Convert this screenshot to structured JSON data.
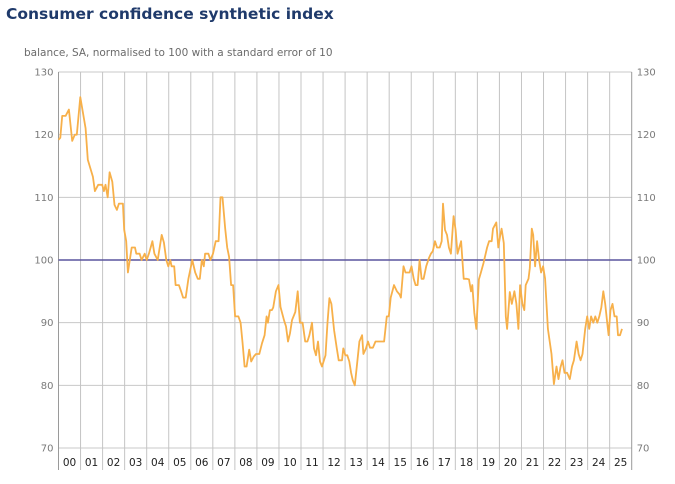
{
  "chart_data": {
    "type": "line",
    "title": "Consumer confidence synthetic index",
    "subtitle": "balance, SA, normalised to 100 with a standard error of 10",
    "xlabel": "",
    "ylabel": "",
    "xlim": [
      2000,
      2026
    ],
    "ylim": [
      70,
      130
    ],
    "yticks": [
      70,
      80,
      90,
      100,
      110,
      120,
      130
    ],
    "xtick_labels": [
      "00",
      "01",
      "02",
      "03",
      "04",
      "05",
      "06",
      "07",
      "08",
      "09",
      "10",
      "11",
      "12",
      "13",
      "14",
      "15",
      "16",
      "17",
      "18",
      "19",
      "20",
      "21",
      "22",
      "23",
      "24",
      "25"
    ],
    "grid": true,
    "reference_line": {
      "value": 100,
      "color": "#5a559e"
    },
    "series_color": "#f7b04a",
    "series": [
      {
        "points": [
          [
            2000.0,
            119.2
          ],
          [
            2000.08,
            119.5
          ],
          [
            2000.17,
            123
          ],
          [
            2000.32,
            123
          ],
          [
            2000.47,
            124
          ],
          [
            2000.62,
            119
          ],
          [
            2000.74,
            120
          ],
          [
            2000.83,
            120
          ],
          [
            2000.99,
            126
          ],
          [
            2001.23,
            121
          ],
          [
            2001.33,
            116
          ],
          [
            2001.56,
            113.3
          ],
          [
            2001.65,
            111
          ],
          [
            2001.8,
            112
          ],
          [
            2001.98,
            112
          ],
          [
            2002.06,
            111
          ],
          [
            2002.13,
            112
          ],
          [
            2002.23,
            110
          ],
          [
            2002.32,
            114
          ],
          [
            2002.44,
            112.5
          ],
          [
            2002.54,
            108.8
          ],
          [
            2002.65,
            108
          ],
          [
            2002.74,
            109
          ],
          [
            2002.92,
            109
          ],
          [
            2002.98,
            104.8
          ],
          [
            2003.07,
            103
          ],
          [
            2003.15,
            98
          ],
          [
            2003.32,
            102
          ],
          [
            2003.47,
            102
          ],
          [
            2003.53,
            101
          ],
          [
            2003.68,
            101
          ],
          [
            2003.77,
            100
          ],
          [
            2003.91,
            101
          ],
          [
            2004.0,
            100
          ],
          [
            2004.1,
            101
          ],
          [
            2004.26,
            103
          ],
          [
            2004.35,
            101
          ],
          [
            2004.5,
            100
          ],
          [
            2004.68,
            104
          ],
          [
            2004.78,
            102.8
          ],
          [
            2004.89,
            100
          ],
          [
            2004.98,
            99
          ],
          [
            2005.07,
            100
          ],
          [
            2005.13,
            99
          ],
          [
            2005.25,
            99
          ],
          [
            2005.31,
            96
          ],
          [
            2005.46,
            96
          ],
          [
            2005.56,
            95
          ],
          [
            2005.65,
            94
          ],
          [
            2005.77,
            94
          ],
          [
            2005.89,
            97
          ],
          [
            2005.95,
            98
          ],
          [
            2006.07,
            100
          ],
          [
            2006.2,
            98
          ],
          [
            2006.32,
            97
          ],
          [
            2006.41,
            97
          ],
          [
            2006.5,
            100
          ],
          [
            2006.59,
            99
          ],
          [
            2006.65,
            101
          ],
          [
            2006.8,
            101
          ],
          [
            2006.89,
            100
          ],
          [
            2007.01,
            101
          ],
          [
            2007.13,
            103
          ],
          [
            2007.26,
            103
          ],
          [
            2007.35,
            110
          ],
          [
            2007.44,
            110
          ],
          [
            2007.56,
            105
          ],
          [
            2007.65,
            102
          ],
          [
            2007.74,
            100.5
          ],
          [
            2007.83,
            96
          ],
          [
            2007.92,
            96
          ],
          [
            2008.01,
            91
          ],
          [
            2008.16,
            91
          ],
          [
            2008.26,
            90
          ],
          [
            2008.35,
            86.7
          ],
          [
            2008.44,
            83
          ],
          [
            2008.53,
            83
          ],
          [
            2008.65,
            85.7
          ],
          [
            2008.74,
            83.8
          ],
          [
            2008.86,
            84.6
          ],
          [
            2008.96,
            85
          ],
          [
            2009.11,
            85
          ],
          [
            2009.23,
            86.7
          ],
          [
            2009.35,
            88
          ],
          [
            2009.44,
            91
          ],
          [
            2009.5,
            90
          ],
          [
            2009.59,
            92
          ],
          [
            2009.68,
            92
          ],
          [
            2009.74,
            92.4
          ],
          [
            2009.86,
            95
          ],
          [
            2009.98,
            96
          ],
          [
            2010.07,
            92.5
          ],
          [
            2010.23,
            90.4
          ],
          [
            2010.32,
            89.4
          ],
          [
            2010.41,
            87
          ],
          [
            2010.5,
            88.3
          ],
          [
            2010.59,
            90.4
          ],
          [
            2010.74,
            91.7
          ],
          [
            2010.85,
            95
          ],
          [
            2010.95,
            90
          ],
          [
            2011.07,
            90
          ],
          [
            2011.19,
            87
          ],
          [
            2011.29,
            87
          ],
          [
            2011.38,
            88
          ],
          [
            2011.5,
            90
          ],
          [
            2011.59,
            85.9
          ],
          [
            2011.68,
            84.8
          ],
          [
            2011.77,
            87
          ],
          [
            2011.86,
            83.8
          ],
          [
            2011.95,
            83
          ],
          [
            2012.11,
            84.8
          ],
          [
            2012.2,
            90
          ],
          [
            2012.29,
            93.9
          ],
          [
            2012.38,
            93
          ],
          [
            2012.5,
            88.8
          ],
          [
            2012.62,
            86
          ],
          [
            2012.71,
            84
          ],
          [
            2012.86,
            84
          ],
          [
            2012.92,
            85.9
          ],
          [
            2013.01,
            84.8
          ],
          [
            2013.1,
            84.8
          ],
          [
            2013.19,
            83.8
          ],
          [
            2013.27,
            82
          ],
          [
            2013.35,
            80.8
          ],
          [
            2013.44,
            80
          ],
          [
            2013.53,
            83
          ],
          [
            2013.65,
            87
          ],
          [
            2013.77,
            88
          ],
          [
            2013.83,
            85
          ],
          [
            2013.95,
            85.9
          ],
          [
            2014.04,
            87
          ],
          [
            2014.13,
            86
          ],
          [
            2014.26,
            86
          ],
          [
            2014.38,
            87
          ],
          [
            2014.77,
            87
          ],
          [
            2014.89,
            91
          ],
          [
            2014.98,
            91
          ],
          [
            2015.07,
            94
          ],
          [
            2015.22,
            96
          ],
          [
            2015.35,
            95
          ],
          [
            2015.47,
            94.5
          ],
          [
            2015.53,
            94
          ],
          [
            2015.65,
            99
          ],
          [
            2015.74,
            98
          ],
          [
            2015.92,
            98
          ],
          [
            2016.01,
            99
          ],
          [
            2016.11,
            97
          ],
          [
            2016.2,
            96
          ],
          [
            2016.29,
            96
          ],
          [
            2016.38,
            100
          ],
          [
            2016.47,
            97
          ],
          [
            2016.56,
            97
          ],
          [
            2016.68,
            99
          ],
          [
            2016.8,
            100.3
          ],
          [
            2016.89,
            101
          ],
          [
            2016.98,
            101.4
          ],
          [
            2017.08,
            103
          ],
          [
            2017.17,
            102
          ],
          [
            2017.29,
            102
          ],
          [
            2017.38,
            103
          ],
          [
            2017.44,
            109
          ],
          [
            2017.53,
            104.8
          ],
          [
            2017.62,
            104
          ],
          [
            2017.71,
            102
          ],
          [
            2017.8,
            101
          ],
          [
            2017.92,
            107
          ],
          [
            2018.01,
            104.8
          ],
          [
            2018.1,
            101
          ],
          [
            2018.26,
            103
          ],
          [
            2018.38,
            97
          ],
          [
            2018.5,
            97
          ],
          [
            2018.62,
            96.9
          ],
          [
            2018.71,
            95
          ],
          [
            2018.77,
            96
          ],
          [
            2018.86,
            91.6
          ],
          [
            2018.95,
            89
          ],
          [
            2019.07,
            96.9
          ],
          [
            2019.16,
            98
          ],
          [
            2019.28,
            99.5
          ],
          [
            2019.44,
            102
          ],
          [
            2019.53,
            103
          ],
          [
            2019.65,
            103
          ],
          [
            2019.71,
            105
          ],
          [
            2019.86,
            106
          ],
          [
            2019.95,
            102
          ],
          [
            2020.04,
            104
          ],
          [
            2020.1,
            105
          ],
          [
            2020.2,
            102.7
          ],
          [
            2020.29,
            91
          ],
          [
            2020.35,
            89
          ],
          [
            2020.47,
            94.9
          ],
          [
            2020.56,
            93
          ],
          [
            2020.68,
            95
          ],
          [
            2020.77,
            93
          ],
          [
            2020.86,
            89
          ],
          [
            2020.94,
            96
          ],
          [
            2021.04,
            93
          ],
          [
            2021.13,
            92
          ],
          [
            2021.19,
            96
          ],
          [
            2021.32,
            97
          ],
          [
            2021.38,
            98.7
          ],
          [
            2021.47,
            105
          ],
          [
            2021.53,
            104
          ],
          [
            2021.62,
            99
          ],
          [
            2021.71,
            103
          ],
          [
            2021.8,
            100
          ],
          [
            2021.89,
            98
          ],
          [
            2021.98,
            99
          ],
          [
            2022.07,
            97
          ],
          [
            2022.2,
            89
          ],
          [
            2022.36,
            85
          ],
          [
            2022.47,
            80.2
          ],
          [
            2022.59,
            83
          ],
          [
            2022.68,
            81
          ],
          [
            2022.77,
            82.9
          ],
          [
            2022.86,
            84
          ],
          [
            2022.95,
            82
          ],
          [
            2023.07,
            82
          ],
          [
            2023.19,
            81
          ],
          [
            2023.29,
            83
          ],
          [
            2023.38,
            84
          ],
          [
            2023.5,
            87
          ],
          [
            2023.59,
            85
          ],
          [
            2023.68,
            84
          ],
          [
            2023.77,
            85
          ],
          [
            2023.89,
            89
          ],
          [
            2023.98,
            91
          ],
          [
            2024.07,
            89
          ],
          [
            2024.16,
            91
          ],
          [
            2024.26,
            90
          ],
          [
            2024.35,
            91
          ],
          [
            2024.44,
            90
          ],
          [
            2024.53,
            91
          ],
          [
            2024.62,
            92.4
          ],
          [
            2024.71,
            95
          ],
          [
            2024.8,
            93
          ],
          [
            2024.89,
            90
          ],
          [
            2024.95,
            88
          ],
          [
            2025.04,
            92
          ],
          [
            2025.13,
            93
          ],
          [
            2025.22,
            91
          ],
          [
            2025.32,
            91
          ],
          [
            2025.38,
            88
          ],
          [
            2025.47,
            88
          ],
          [
            2025.56,
            89
          ]
        ]
      }
    ]
  }
}
